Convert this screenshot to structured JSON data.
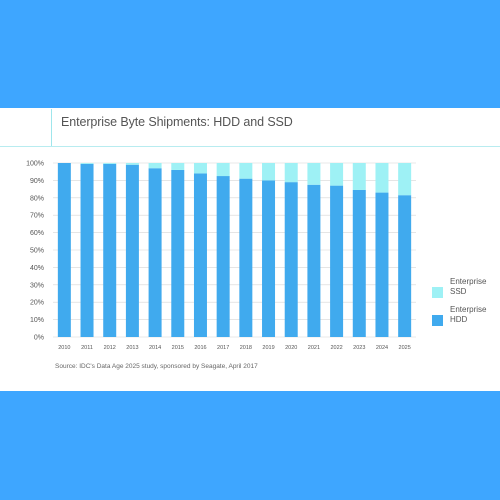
{
  "colors": {
    "background": "#3ea6ff",
    "card": "#ffffff",
    "hdd": "#40aaee",
    "ssd": "#9ef1f5",
    "grid": "#d6d6d6",
    "text": "#555555"
  },
  "chart_data": {
    "type": "bar",
    "stacked": true,
    "title": "Enterprise Byte Shipments: HDD and SSD",
    "xlabel": "",
    "ylabel": "",
    "ylim": [
      0,
      100
    ],
    "y_ticks": [
      "0%",
      "10%",
      "20%",
      "30%",
      "40%",
      "50%",
      "60%",
      "70%",
      "80%",
      "90%",
      "100%"
    ],
    "categories": [
      "2010",
      "2011",
      "2012",
      "2013",
      "2014",
      "2015",
      "2016",
      "2017",
      "2018",
      "2019",
      "2020",
      "2021",
      "2022",
      "2023",
      "2024",
      "2025"
    ],
    "series": [
      {
        "name": "Enterprise HDD",
        "color": "#40aaee",
        "values": [
          100,
          99.5,
          99.5,
          99,
          97,
          96,
          94,
          92.5,
          91,
          90,
          89,
          87.5,
          87,
          84.5,
          83,
          81.5
        ]
      },
      {
        "name": "Enterprise SSD",
        "color": "#9ef1f5",
        "values": [
          0,
          0.5,
          0.5,
          1,
          3,
          4,
          6,
          7.5,
          9,
          10,
          11,
          12.5,
          13,
          15.5,
          17,
          18.5
        ]
      }
    ],
    "legend": {
      "placement": "right",
      "order": [
        "Enterprise SSD",
        "Enterprise HDD"
      ]
    },
    "grid": true,
    "source": "Source: IDC's Data Age 2025 study, sponsored by Seagate, April 2017"
  }
}
